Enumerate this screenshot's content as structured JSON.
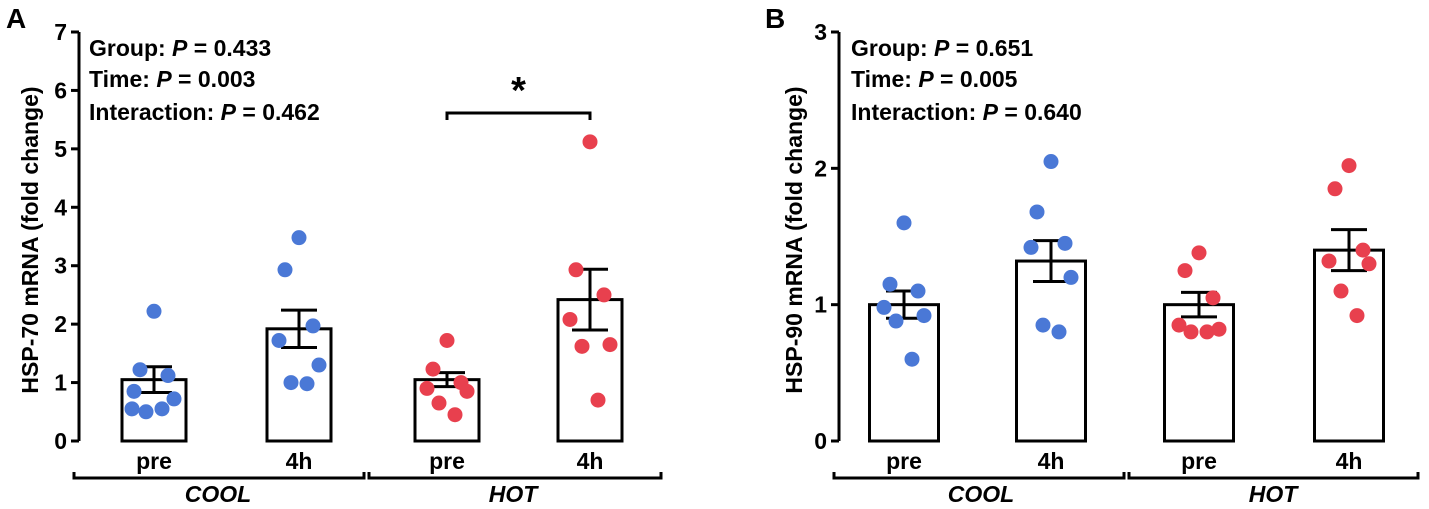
{
  "charts": [
    {
      "panel_label": "A",
      "stats": {
        "group_prefix": "Group: ",
        "group_p": "0.433",
        "time_prefix": "Time: ",
        "time_p": "0.003",
        "interaction_prefix": "Interaction: ",
        "interaction_p": "0.462",
        "p_symbol": "P",
        "equals": " = "
      },
      "significance": "*"
    },
    {
      "panel_label": "B",
      "stats": {
        "group_prefix": "Group: ",
        "group_p": "0.651",
        "time_prefix": "Time: ",
        "time_p": "0.005",
        "interaction_prefix": "Interaction: ",
        "interaction_p": "0.640",
        "p_symbol": "P",
        "equals": " = "
      },
      "significance": ""
    }
  ],
  "chart_data": [
    {
      "type": "bar",
      "title": "",
      "ylabel": "HSP-70 mRNA  (fold change)",
      "xlabel": "",
      "ylim": [
        0,
        7
      ],
      "yticks": [
        "0",
        "1",
        "2",
        "3",
        "4",
        "5",
        "6",
        "7"
      ],
      "categories": [
        "pre",
        "4h",
        "pre",
        "4h"
      ],
      "groups": [
        {
          "name": "COOL",
          "categories": [
            0,
            1
          ]
        },
        {
          "name": "HOT",
          "categories": [
            2,
            3
          ]
        }
      ],
      "means": [
        1.05,
        1.92,
        1.05,
        2.42
      ],
      "sem": [
        0.22,
        0.32,
        0.12,
        0.52
      ],
      "points": [
        [
          2.22,
          1.22,
          1.12,
          0.85,
          0.72,
          0.5,
          0.55,
          0.55
        ],
        [
          3.48,
          2.93,
          1.97,
          1.72,
          1.3,
          1.0,
          0.98
        ],
        [
          1.72,
          1.23,
          1.0,
          0.9,
          0.85,
          0.65,
          0.45
        ],
        [
          5.12,
          2.93,
          2.5,
          2.08,
          1.65,
          1.62,
          0.7
        ]
      ],
      "point_colors": [
        "#4a78d6",
        "#4a78d6",
        "#e8404e",
        "#e8404e"
      ],
      "significance": {
        "from": 2,
        "to": 3,
        "label": "*"
      }
    },
    {
      "type": "bar",
      "title": "",
      "ylabel": "HSP-90 mRNA  (fold change)",
      "xlabel": "",
      "ylim": [
        0,
        3
      ],
      "yticks": [
        "0",
        "1",
        "2",
        "3"
      ],
      "categories": [
        "pre",
        "4h",
        "pre",
        "4h"
      ],
      "groups": [
        {
          "name": "COOL",
          "categories": [
            0,
            1
          ]
        },
        {
          "name": "HOT",
          "categories": [
            2,
            3
          ]
        }
      ],
      "means": [
        1.0,
        1.32,
        1.0,
        1.4
      ],
      "sem": [
        0.1,
        0.15,
        0.09,
        0.15
      ],
      "points": [
        [
          1.6,
          1.15,
          1.1,
          0.98,
          0.92,
          0.88,
          0.6
        ],
        [
          2.05,
          1.68,
          1.45,
          1.42,
          1.2,
          0.85,
          0.8
        ],
        [
          1.38,
          1.25,
          1.05,
          0.85,
          0.82,
          0.8,
          0.8
        ],
        [
          2.02,
          1.85,
          1.4,
          1.32,
          1.3,
          1.1,
          0.92
        ]
      ],
      "point_colors": [
        "#4a78d6",
        "#4a78d6",
        "#e8404e",
        "#e8404e"
      ],
      "significance": null
    }
  ]
}
